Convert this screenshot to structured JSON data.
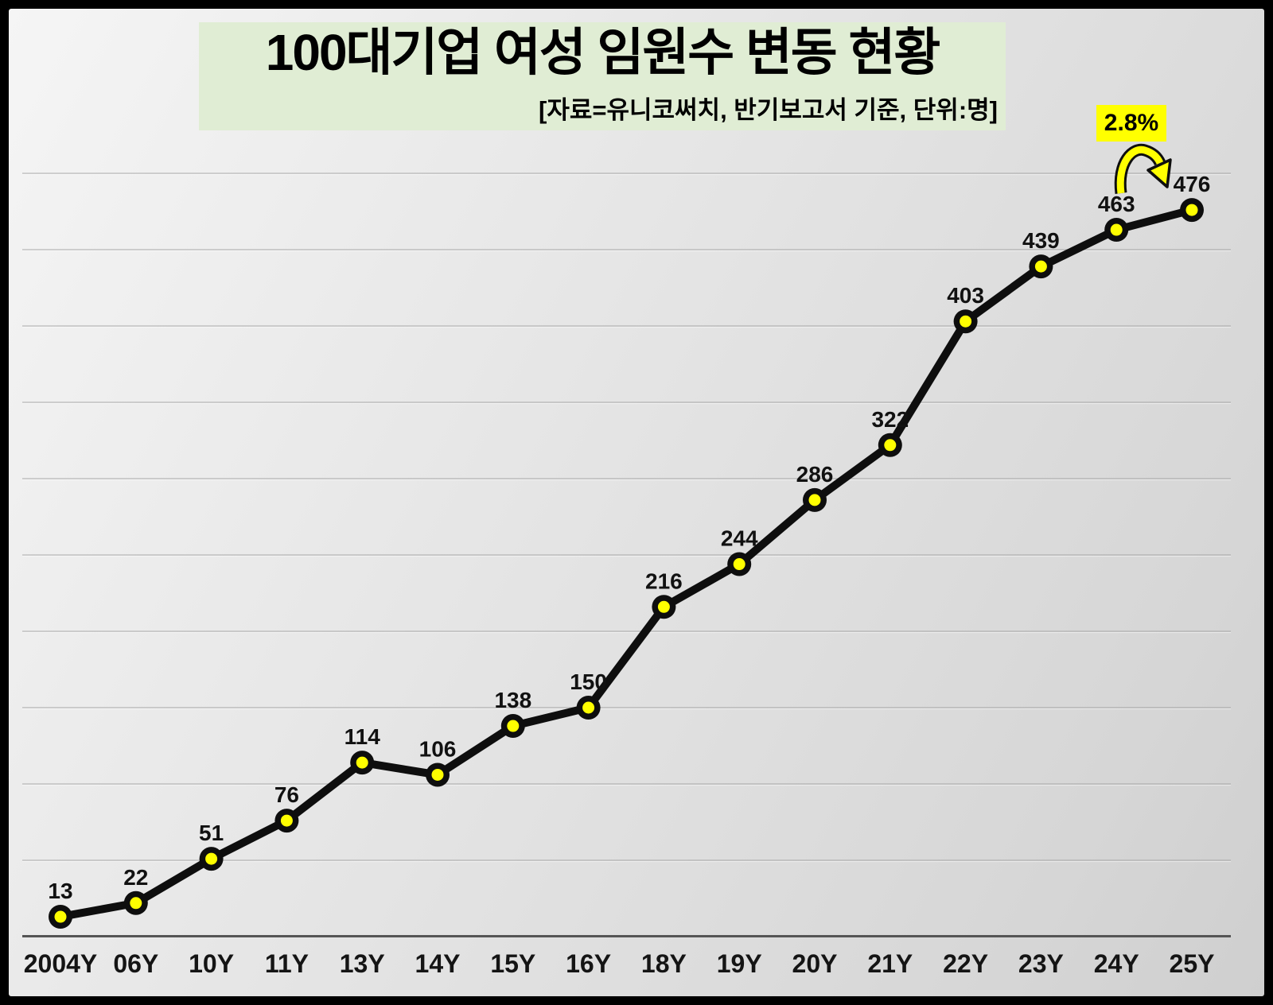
{
  "title": {
    "text": "100대기업 여성 임원수 변동 현황",
    "subtitle": "[자료=유니코써치, 반기보고서 기준, 단위:명]",
    "bg_color": "#e0edd4"
  },
  "annotation": {
    "label": "2.8%",
    "bg_color": "#ffff00",
    "meaning": "increase from 463 to 476"
  },
  "chart_data": {
    "type": "line",
    "categories": [
      "2004Y",
      "06Y",
      "10Y",
      "11Y",
      "13Y",
      "14Y",
      "15Y",
      "16Y",
      "18Y",
      "19Y",
      "20Y",
      "21Y",
      "22Y",
      "23Y",
      "24Y",
      "25Y"
    ],
    "values": [
      13,
      22,
      51,
      76,
      114,
      106,
      138,
      150,
      216,
      244,
      286,
      322,
      403,
      439,
      463,
      476
    ],
    "title": "100대기업 여성 임원수 변동 현황",
    "xlabel": "",
    "ylabel": "",
    "ylim": [
      0,
      500
    ],
    "gridline_step": 50,
    "grid": true,
    "legend": false,
    "line_color": "#0e0e0e",
    "marker_fill": "#ffff00",
    "marker_ring_color": "#0e0e0e",
    "axis_line_color": "#555555",
    "gridline_color": "#9a9a9a",
    "label_color": "#111111"
  }
}
